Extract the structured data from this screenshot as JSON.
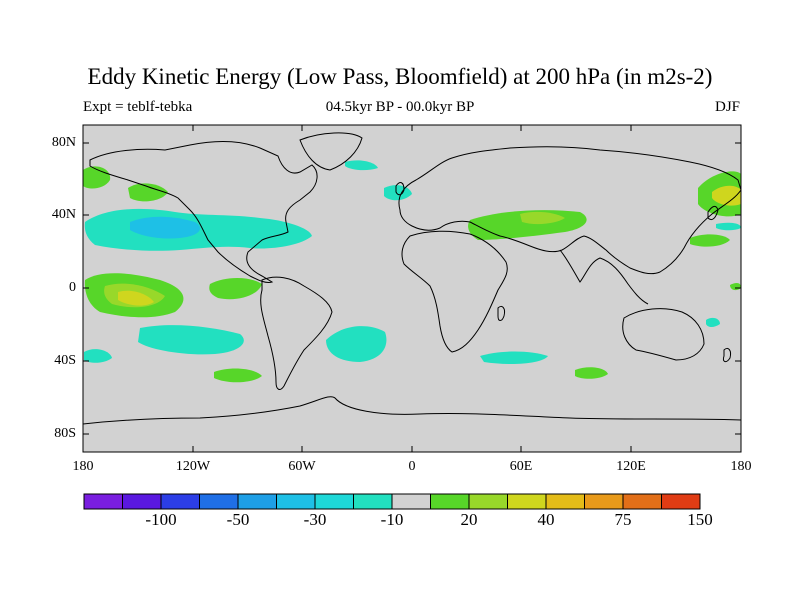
{
  "title": "Eddy Kinetic Energy (Low Pass, Bloomfield) at 200 hPa (in m2s-2)",
  "subtitle_left": "Expt = teblf-tebka",
  "subtitle_center": "04.5kyr BP - 00.0kyr BP",
  "subtitle_right": "DJF",
  "lat_labels": [
    "80N",
    "40N",
    "0",
    "40S",
    "80S"
  ],
  "lon_labels": [
    "180",
    "120W",
    "60W",
    "0",
    "60E",
    "120E",
    "180"
  ],
  "colorbar": {
    "colors": [
      "#7a1ee0",
      "#5a18e0",
      "#2c3ee6",
      "#1f6fe6",
      "#1e9fe6",
      "#1ec0e6",
      "#1ed8d8",
      "#22e0c0",
      "#d2d2d2",
      "#57d629",
      "#98d82a",
      "#cfd61e",
      "#e4bc18",
      "#e89a1a",
      "#e26f18",
      "#e03c14"
    ],
    "labels": [
      "-100",
      "-50",
      "-30",
      "-10",
      "20",
      "40",
      "75",
      "150"
    ]
  },
  "colors": {
    "land_ocean_zero": "#d2d2d2",
    "coastline": "#000000"
  }
}
